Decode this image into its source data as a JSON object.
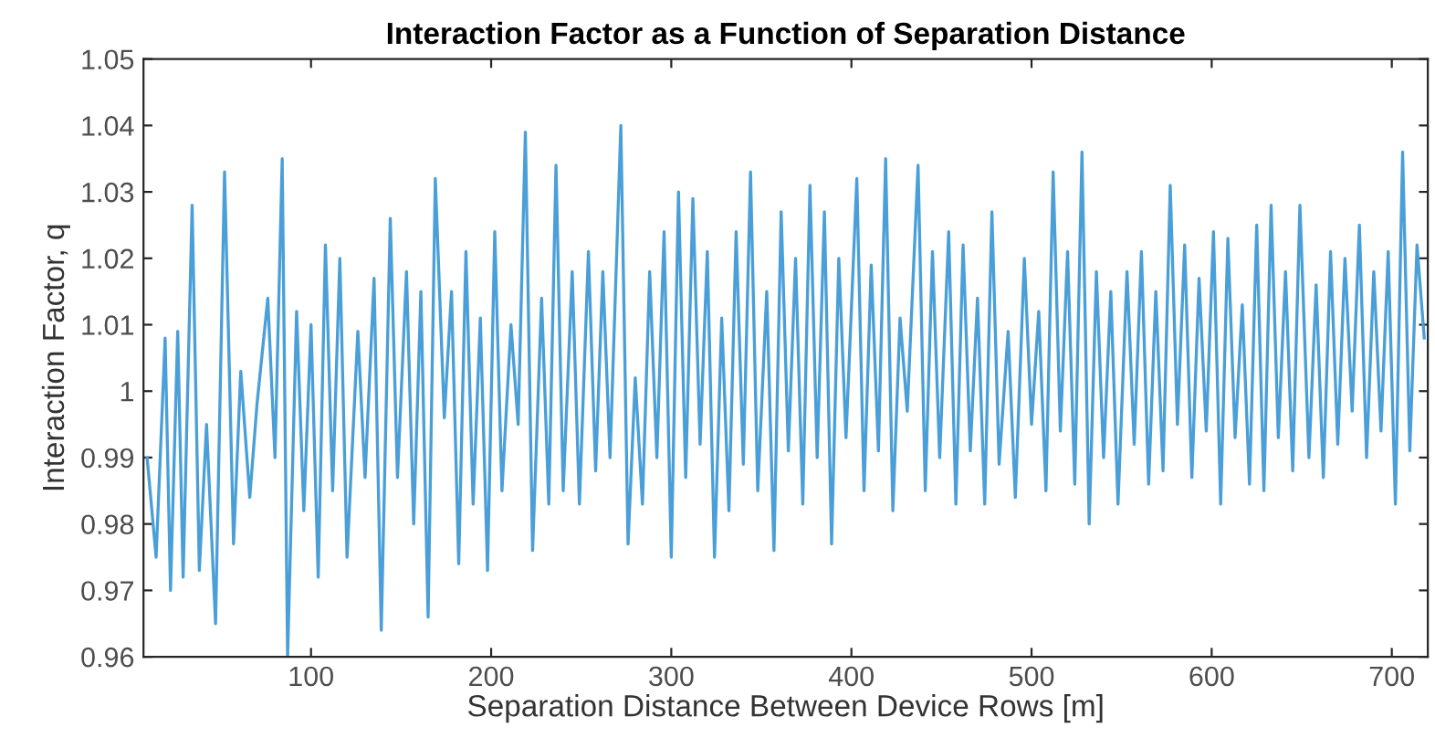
{
  "chart_data": {
    "type": "line",
    "title": "Interaction Factor as a Function of Separation Distance",
    "xlabel": "Separation Distance Between Device Rows [m]",
    "ylabel": "Interaction Factor, q",
    "xlim": [
      7,
      720
    ],
    "xticks": [
      100,
      200,
      300,
      400,
      500,
      600,
      700
    ],
    "ylim": [
      0.96,
      1.05
    ],
    "yticks": [
      0.96,
      0.97,
      0.98,
      0.99,
      1,
      1.01,
      1.02,
      1.03,
      1.04,
      1.05
    ],
    "grid": false,
    "legend": false,
    "marker": "none",
    "line_style": "solid",
    "series": [
      {
        "color": "#4a9fd8",
        "x": [
          9,
          14,
          19,
          22,
          26,
          29,
          34,
          38,
          42,
          47,
          52,
          57,
          61,
          66,
          70,
          76,
          80,
          84,
          87,
          92,
          96,
          100,
          104,
          108,
          112,
          116,
          120,
          126,
          130,
          135,
          139,
          144,
          148,
          153,
          157,
          161,
          165,
          169,
          174,
          178,
          182,
          186,
          190,
          194,
          198,
          202,
          206,
          211,
          215,
          219,
          223,
          228,
          232,
          236,
          240,
          245,
          249,
          254,
          258,
          262,
          266,
          272,
          276,
          280,
          284,
          288,
          292,
          296,
          300,
          304,
          308,
          312,
          316,
          320,
          324,
          328,
          332,
          336,
          340,
          344,
          348,
          353,
          357,
          361,
          365,
          369,
          373,
          377,
          381,
          385,
          389,
          393,
          397,
          403,
          407,
          411,
          415,
          419,
          423,
          427,
          431,
          437,
          441,
          445,
          449,
          454,
          458,
          462,
          466,
          470,
          474,
          478,
          482,
          487,
          491,
          496,
          500,
          504,
          508,
          512,
          516,
          520,
          524,
          528,
          532,
          536,
          540,
          544,
          548,
          553,
          557,
          561,
          565,
          569,
          573,
          577,
          581,
          585,
          589,
          593,
          597,
          601,
          605,
          609,
          613,
          617,
          621,
          625,
          629,
          633,
          637,
          641,
          645,
          649,
          654,
          658,
          662,
          666,
          670,
          674,
          678,
          682,
          686,
          690,
          694,
          698,
          702,
          706,
          710,
          714,
          718
        ],
        "values": [
          0.99,
          0.975,
          1.008,
          0.97,
          1.009,
          0.972,
          1.028,
          0.973,
          0.995,
          0.965,
          1.033,
          0.977,
          1.003,
          0.984,
          0.998,
          1.014,
          0.99,
          1.035,
          0.96,
          1.012,
          0.982,
          1.01,
          0.972,
          1.022,
          0.985,
          1.02,
          0.975,
          1.009,
          0.987,
          1.017,
          0.964,
          1.026,
          0.987,
          1.018,
          0.98,
          1.015,
          0.966,
          1.032,
          0.996,
          1.015,
          0.974,
          1.021,
          0.983,
          1.011,
          0.973,
          1.024,
          0.985,
          1.01,
          0.995,
          1.039,
          0.976,
          1.014,
          0.983,
          1.034,
          0.985,
          1.018,
          0.983,
          1.021,
          0.988,
          1.018,
          0.99,
          1.04,
          0.977,
          1.002,
          0.983,
          1.018,
          0.99,
          1.024,
          0.975,
          1.03,
          0.987,
          1.029,
          0.992,
          1.021,
          0.975,
          1.011,
          0.982,
          1.024,
          0.989,
          1.033,
          0.985,
          1.015,
          0.976,
          1.027,
          0.991,
          1.02,
          0.983,
          1.031,
          0.99,
          1.027,
          0.977,
          1.02,
          0.993,
          1.032,
          0.985,
          1.019,
          0.991,
          1.035,
          0.982,
          1.011,
          0.997,
          1.034,
          0.985,
          1.021,
          0.99,
          1.024,
          0.983,
          1.022,
          0.991,
          1.014,
          0.983,
          1.027,
          0.989,
          1.009,
          0.984,
          1.02,
          0.995,
          1.012,
          0.985,
          1.033,
          0.994,
          1.021,
          0.986,
          1.036,
          0.98,
          1.018,
          0.99,
          1.015,
          0.983,
          1.018,
          0.992,
          1.021,
          0.986,
          1.015,
          0.988,
          1.031,
          0.995,
          1.022,
          0.987,
          1.017,
          0.994,
          1.024,
          0.983,
          1.023,
          0.993,
          1.013,
          0.986,
          1.025,
          0.985,
          1.028,
          0.993,
          1.018,
          0.988,
          1.028,
          0.99,
          1.016,
          0.987,
          1.021,
          0.992,
          1.02,
          0.997,
          1.025,
          0.99,
          1.018,
          0.994,
          1.021,
          0.983,
          1.036,
          0.991,
          1.022,
          1.008
        ]
      }
    ]
  }
}
